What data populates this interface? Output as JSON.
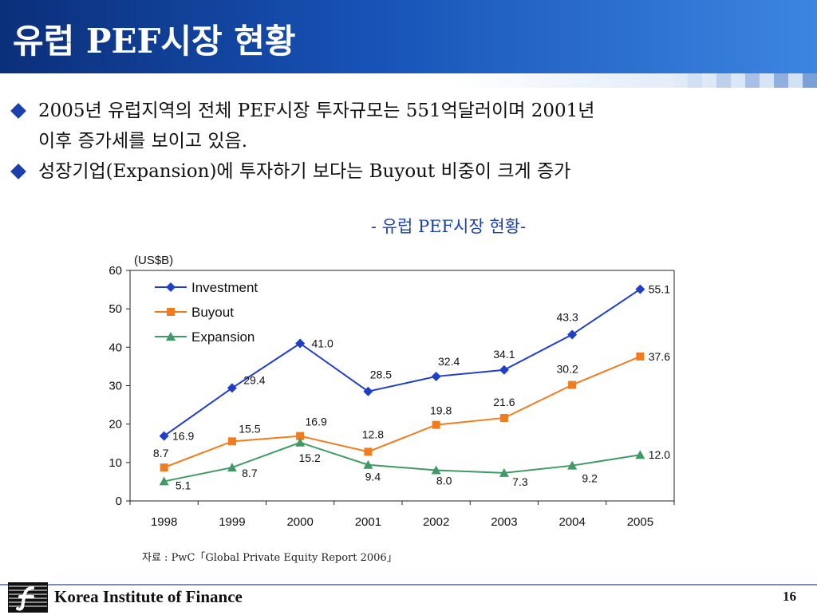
{
  "slide": {
    "title": "유럽 PEF시장 현황",
    "bullets": [
      "2005년 유럽지역의 전체 PEF시장 투자규모는 551억달러이며 2001년",
      "이후 증가세를 보이고 있음.",
      "성장기업(Expansion)에 투자하기 보다는 Buyout 비중이 크게 증가"
    ],
    "chart_heading": "-  유럽 PEF시장 현황-",
    "source": "자료 : PwC「Global Private Equity Report 2006」",
    "footer_org": "Korea Institute of Finance",
    "page_number": "16"
  },
  "chart_data": {
    "type": "line",
    "title": "",
    "unit_label": "(US$B)",
    "xlabel": "",
    "ylabel": "",
    "categories": [
      "1998",
      "1999",
      "2000",
      "2001",
      "2002",
      "2003",
      "2004",
      "2005"
    ],
    "ylim": [
      0,
      60
    ],
    "y_ticks": [
      "0",
      "10",
      "20",
      "30",
      "40",
      "50",
      "60"
    ],
    "legend_position": "top-left",
    "grid": false,
    "series": [
      {
        "name": "Investment",
        "color": "#1f3ec9",
        "marker": "diamond",
        "values": [
          16.9,
          29.4,
          41.0,
          28.5,
          32.4,
          34.1,
          43.3,
          55.1
        ],
        "labels": [
          "16.9",
          "29.4",
          "41.0",
          "28.5",
          "32.4",
          "34.1",
          "43.3",
          "55.1"
        ]
      },
      {
        "name": "Buyout",
        "color": "#f07c1e",
        "marker": "square",
        "values": [
          8.7,
          15.5,
          16.9,
          12.8,
          19.8,
          21.6,
          30.2,
          37.6
        ],
        "labels": [
          "8.7",
          "15.5",
          "16.9",
          "12.8",
          "19.8",
          "21.6",
          "30.2",
          "37.6"
        ]
      },
      {
        "name": "Expansion",
        "color": "#3f9a64",
        "marker": "triangle",
        "values": [
          5.1,
          8.7,
          15.2,
          9.4,
          8.0,
          7.3,
          9.2,
          12.0
        ],
        "labels": [
          "5.1",
          "8.7",
          "15.2",
          "9.4",
          "8.0",
          "7.3",
          "9.2",
          "12.0"
        ]
      }
    ]
  }
}
